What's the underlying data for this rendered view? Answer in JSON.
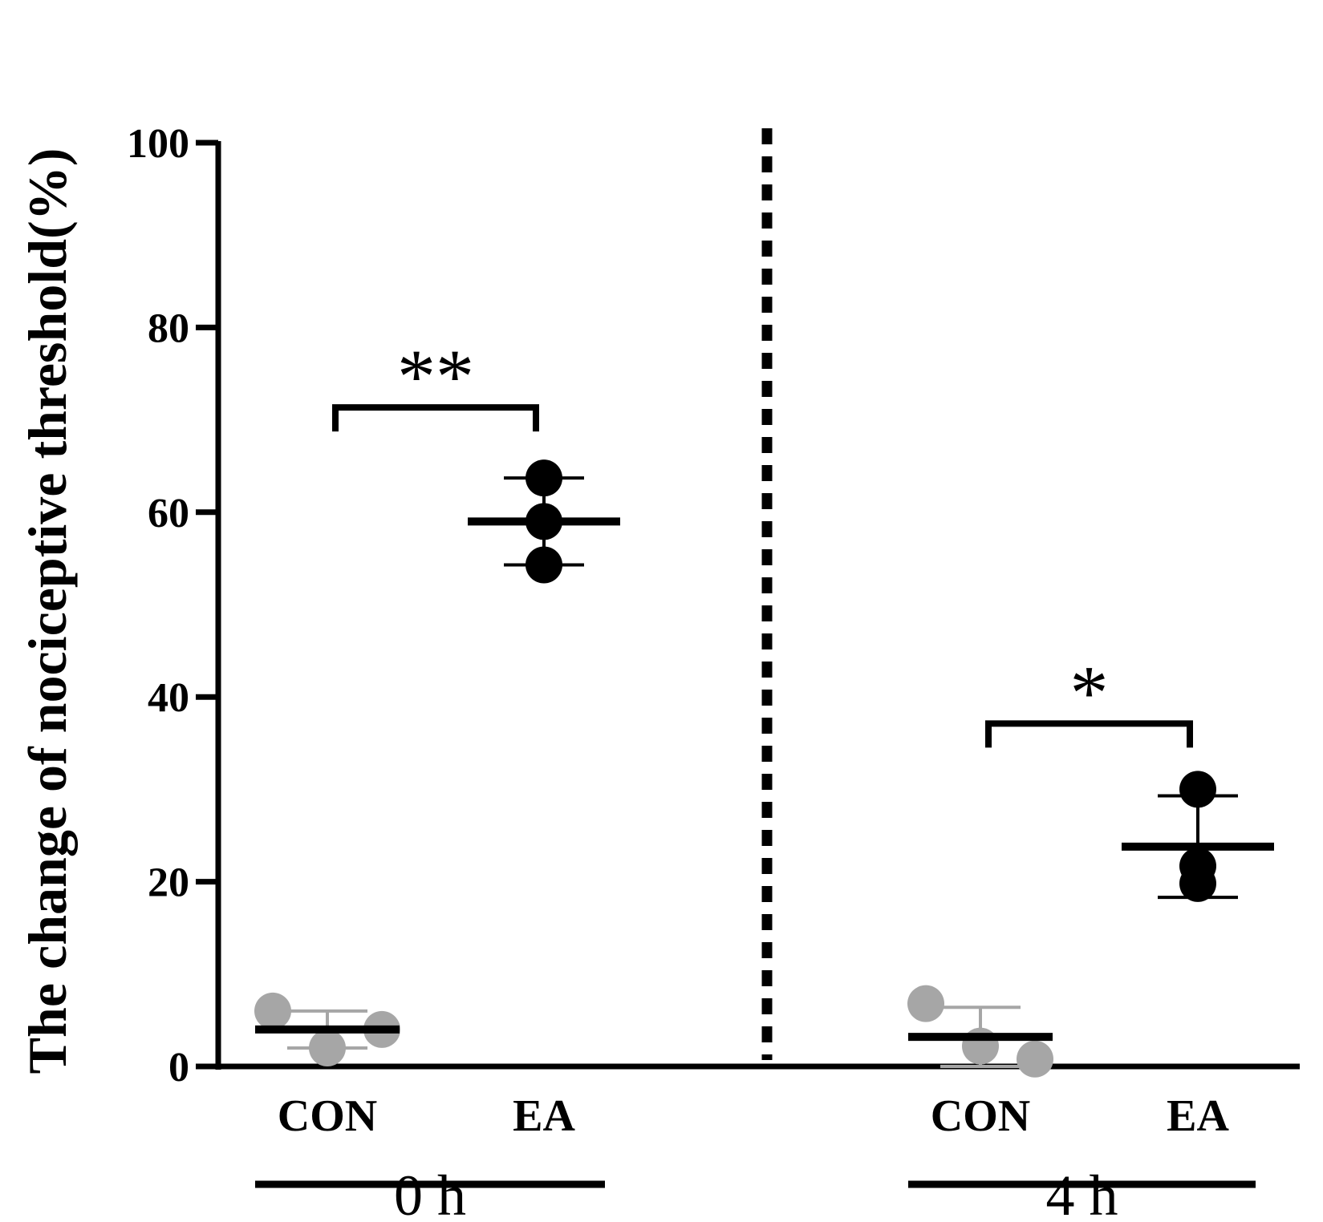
{
  "chart_data": {
    "type": "scatter",
    "ylabel": "The change of nociceptive threshold(%)",
    "ylim": [
      0,
      100
    ],
    "yticks": [
      0,
      20,
      40,
      60,
      80,
      100
    ],
    "colors": {
      "CON": "#a6a6a6",
      "EA": "#000000"
    },
    "panels": [
      {
        "time": "0 h",
        "groups": [
          {
            "name": "CON",
            "points": [
              6.0,
              2.0,
              4.0
            ],
            "mean": 4.0,
            "sd": 2.0
          },
          {
            "name": "EA",
            "points": [
              63.7,
              59.0,
              54.3
            ],
            "mean": 59.0,
            "sd": 4.7
          }
        ],
        "significance": "**"
      },
      {
        "time": "4 h",
        "groups": [
          {
            "name": "CON",
            "points": [
              6.8,
              2.2,
              0.8
            ],
            "mean": 3.2,
            "sd": 3.2
          },
          {
            "name": "EA",
            "points": [
              30.0,
              21.7,
              19.8
            ],
            "mean": 23.8,
            "sd": 5.5
          }
        ],
        "significance": "*"
      }
    ]
  }
}
